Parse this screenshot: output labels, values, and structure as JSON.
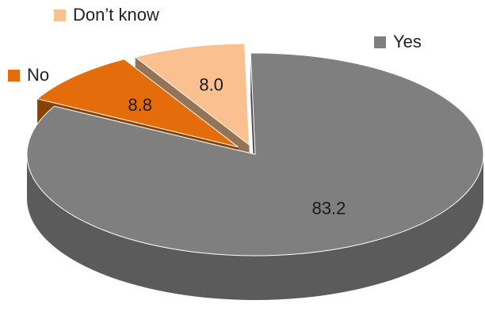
{
  "chart_data": {
    "type": "pie",
    "style": "3d-exploded",
    "categories": [
      "Yes",
      "No",
      "Don’t know"
    ],
    "values": [
      83.2,
      8.8,
      8.0
    ],
    "data_labels": [
      "83.2",
      "8.8",
      "8.0"
    ],
    "colors": {
      "Yes": "#7f7f7f",
      "No": "#e46c0a",
      "Don’t know": "#fac090"
    },
    "legend": {
      "placement": "around-pie",
      "items": [
        {
          "label": "Don’t know",
          "color": "#fac090"
        },
        {
          "label": "No",
          "color": "#e46c0a"
        },
        {
          "label": "Yes",
          "color": "#7f7f7f"
        }
      ]
    }
  }
}
